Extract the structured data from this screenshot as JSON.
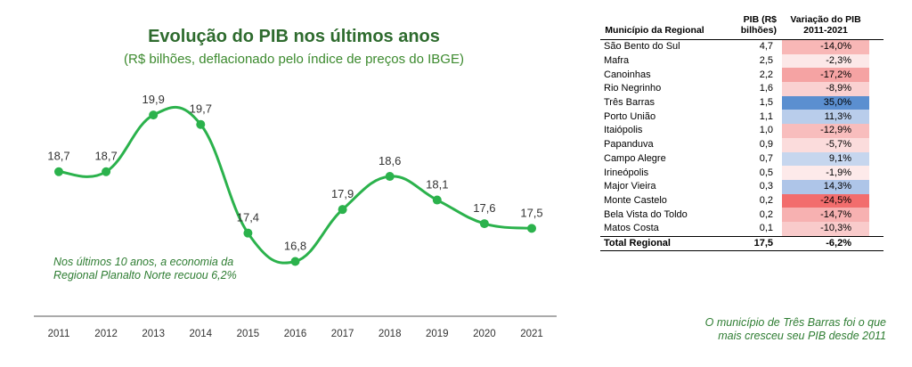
{
  "chart_data": {
    "type": "line",
    "title": "Evolução do PIB nos últimos anos",
    "subtitle": "(R$ bilhões, deflacionado pelo índice de preços do IBGE)",
    "x": [
      "2011",
      "2012",
      "2013",
      "2014",
      "2015",
      "2016",
      "2017",
      "2018",
      "2019",
      "2020",
      "2021"
    ],
    "series": [
      {
        "values": [
          18.7,
          18.7,
          19.9,
          19.7,
          17.4,
          16.8,
          17.9,
          18.6,
          18.1,
          17.6,
          17.5
        ]
      }
    ],
    "data_labels": [
      "18,7",
      "18,7",
      "19,9",
      "19,7",
      "17,4",
      "16,8",
      "17,9",
      "18,6",
      "18,1",
      "17,6",
      "17,5"
    ],
    "ylim": [
      16.3,
      20.6
    ],
    "grid": false,
    "line_color": "#2bb24c"
  },
  "note": "Nos últimos 10 anos, a economia da Regional Planalto Norte recuou 6,2%",
  "table": {
    "headers": [
      "Município da Regional",
      "PIB (R$ bilhões)",
      "Variação do PIB 2011-2021"
    ],
    "rows": [
      {
        "municipio": "São Bento do Sul",
        "pib": "4,7",
        "variacao": "-14,0%",
        "color": "#f8b7b6"
      },
      {
        "municipio": "Mafra",
        "pib": "2,5",
        "variacao": "-2,3%",
        "color": "#fce8e8"
      },
      {
        "municipio": "Canoinhas",
        "pib": "2,2",
        "variacao": "-17,2%",
        "color": "#f5a3a3"
      },
      {
        "municipio": "Rio Negrinho",
        "pib": "1,6",
        "variacao": "-8,9%",
        "color": "#fad1d1"
      },
      {
        "municipio": "Três Barras",
        "pib": "1,5",
        "variacao": "35,0%",
        "color": "#5b8fd0"
      },
      {
        "municipio": "Porto União",
        "pib": "1,1",
        "variacao": "11,3%",
        "color": "#b9cdeb"
      },
      {
        "municipio": "Itaiópolis",
        "pib": "1,0",
        "variacao": "-12,9%",
        "color": "#f8bdbd"
      },
      {
        "municipio": "Papanduva",
        "pib": "0,9",
        "variacao": "-5,7%",
        "color": "#fbdcdc"
      },
      {
        "municipio": "Campo Alegre",
        "pib": "0,7",
        "variacao": "9,1%",
        "color": "#c6d6ee"
      },
      {
        "municipio": "Irineópolis",
        "pib": "0,5",
        "variacao": "-1,9%",
        "color": "#fdeaea"
      },
      {
        "municipio": "Major Vieira",
        "pib": "0,3",
        "variacao": "14,3%",
        "color": "#aec5e8"
      },
      {
        "municipio": "Monte Castelo",
        "pib": "0,2",
        "variacao": "-24,5%",
        "color": "#f26d6d"
      },
      {
        "municipio": "Bela Vista do Toldo",
        "pib": "0,2",
        "variacao": "-14,7%",
        "color": "#f7b1b1"
      },
      {
        "municipio": "Matos Costa",
        "pib": "0,1",
        "variacao": "-10,3%",
        "color": "#f9cbcb"
      }
    ],
    "total": {
      "municipio": "Total  Regional",
      "pib": "17,5",
      "variacao": "-6,2%"
    }
  },
  "foot_note": "O município de Três Barras foi o que mais cresceu seu PIB desde 2011"
}
